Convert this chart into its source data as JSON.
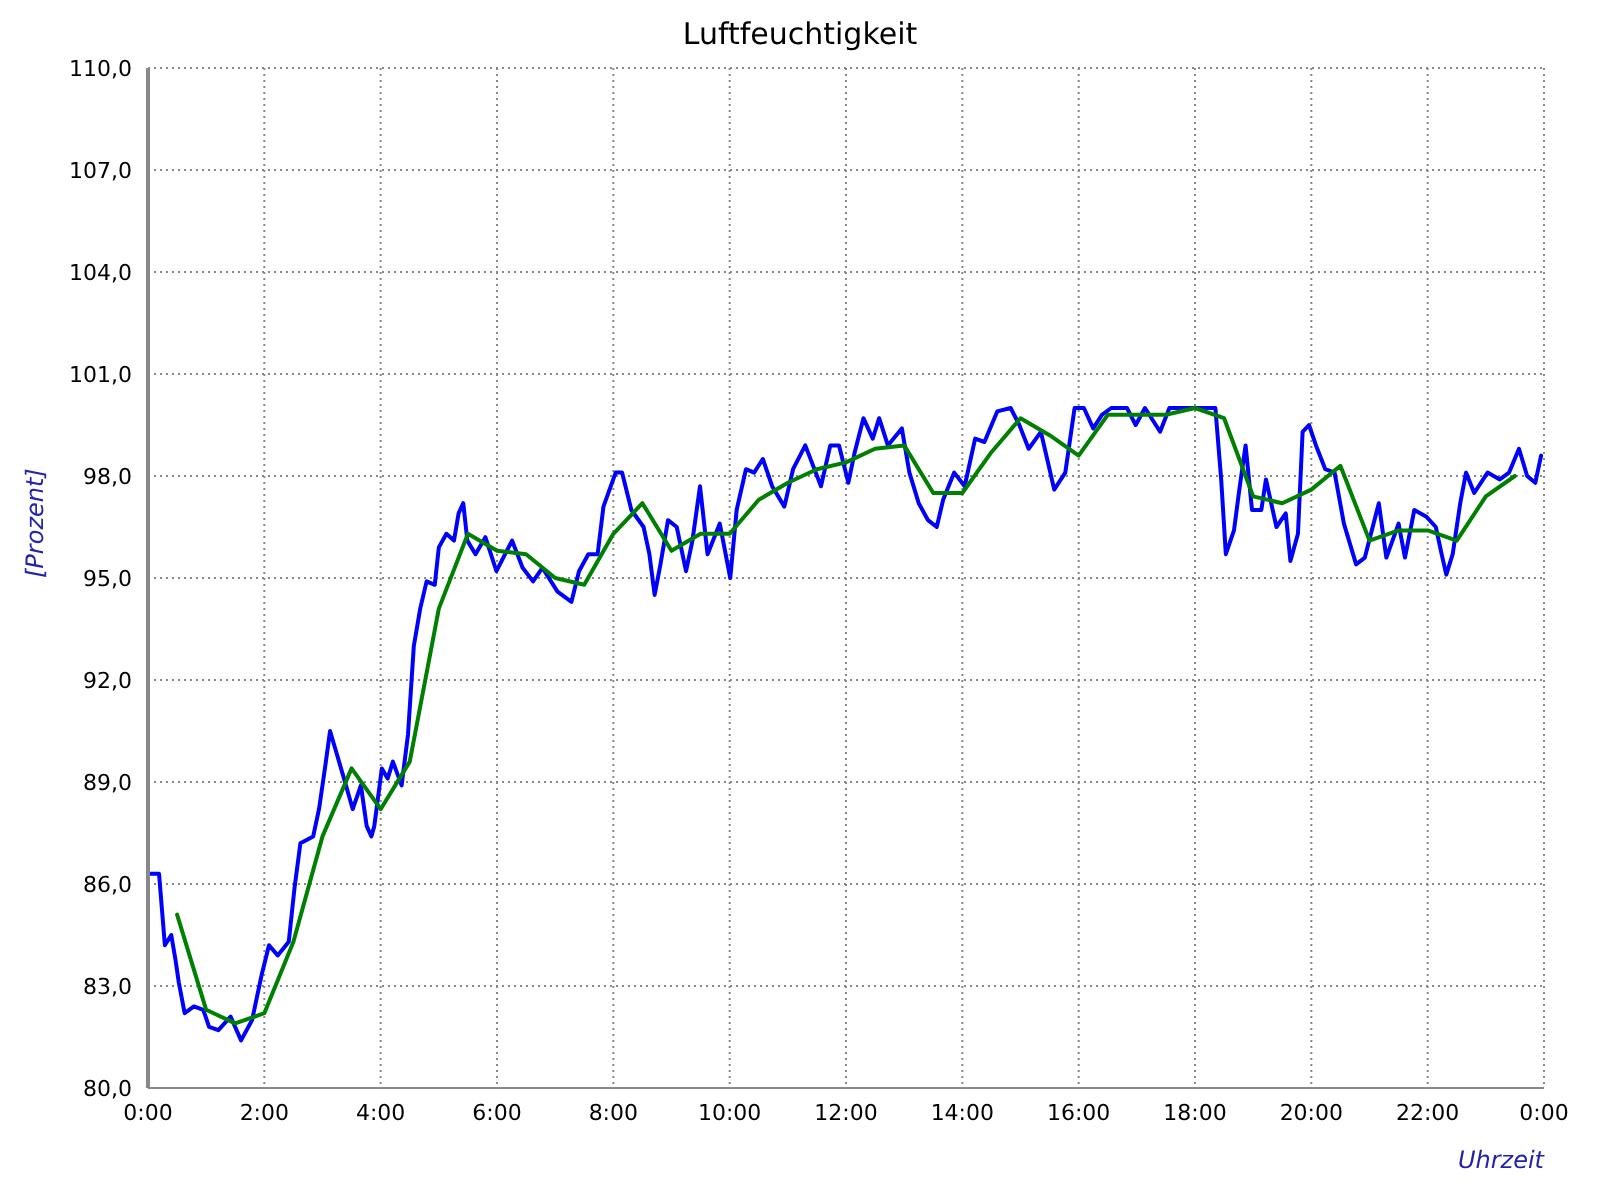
{
  "chart_data": {
    "type": "line",
    "title": "Luftfeuchtigkeit",
    "xlabel": "Uhrzeit",
    "ylabel": "[Prozent]",
    "xlim": [
      0,
      24
    ],
    "xticks": [
      {
        "value": 0,
        "label": "0:00"
      },
      {
        "value": 2,
        "label": "2:00"
      },
      {
        "value": 4,
        "label": "4:00"
      },
      {
        "value": 6,
        "label": "6:00"
      },
      {
        "value": 8,
        "label": "8:00"
      },
      {
        "value": 10,
        "label": "10:00"
      },
      {
        "value": 12,
        "label": "12:00"
      },
      {
        "value": 14,
        "label": "14:00"
      },
      {
        "value": 16,
        "label": "16:00"
      },
      {
        "value": 18,
        "label": "18:00"
      },
      {
        "value": 20,
        "label": "20:00"
      },
      {
        "value": 22,
        "label": "22:00"
      },
      {
        "value": 24,
        "label": "0:00"
      }
    ],
    "ylim": [
      80,
      110
    ],
    "yticks": [
      {
        "value": 80,
        "label": "80,0"
      },
      {
        "value": 83,
        "label": "83,0"
      },
      {
        "value": 86,
        "label": "86,0"
      },
      {
        "value": 89,
        "label": "89,0"
      },
      {
        "value": 92,
        "label": "92,0"
      },
      {
        "value": 95,
        "label": "95,0"
      },
      {
        "value": 98,
        "label": "98,0"
      },
      {
        "value": 101,
        "label": "101,0"
      },
      {
        "value": 104,
        "label": "104,0"
      },
      {
        "value": 107,
        "label": "107,0"
      },
      {
        "value": 110,
        "label": "110,0"
      }
    ],
    "grid": true,
    "marker": "none",
    "line_style": "solid",
    "series": [
      {
        "color": "#0000ff",
        "x": [
          0.0,
          0.19,
          0.29,
          0.4,
          0.47,
          0.53,
          0.63,
          0.79,
          0.95,
          1.05,
          1.21,
          1.42,
          1.6,
          1.79,
          1.95,
          2.08,
          2.23,
          2.42,
          2.52,
          2.62,
          2.84,
          2.94,
          3.05,
          3.13,
          3.25,
          3.37,
          3.52,
          3.66,
          3.76,
          3.84,
          3.89,
          4.02,
          4.12,
          4.21,
          4.36,
          4.47,
          4.57,
          4.68,
          4.79,
          4.93,
          5.0,
          5.13,
          5.26,
          5.34,
          5.42,
          5.49,
          5.63,
          5.8,
          5.99,
          6.26,
          6.44,
          6.62,
          6.78,
          7.04,
          7.28,
          7.41,
          7.57,
          7.73,
          7.83,
          8.04,
          8.15,
          8.31,
          8.52,
          8.62,
          8.71,
          8.81,
          8.94,
          9.09,
          9.25,
          9.36,
          9.49,
          9.62,
          9.83,
          10.01,
          10.12,
          10.28,
          10.42,
          10.57,
          10.73,
          10.94,
          11.09,
          11.3,
          11.57,
          11.73,
          11.88,
          12.04,
          12.15,
          12.3,
          12.46,
          12.57,
          12.72,
          12.96,
          13.09,
          13.25,
          13.41,
          13.56,
          13.67,
          13.86,
          14.04,
          14.22,
          14.38,
          14.6,
          14.83,
          14.98,
          15.14,
          15.35,
          15.58,
          15.77,
          15.93,
          16.09,
          16.25,
          16.4,
          16.56,
          16.83,
          16.98,
          17.14,
          17.4,
          17.56,
          18.35,
          18.45,
          18.53,
          18.67,
          18.77,
          18.87,
          18.98,
          19.14,
          19.22,
          19.4,
          19.56,
          19.64,
          19.77,
          19.85,
          19.96,
          20.08,
          20.24,
          20.4,
          20.56,
          20.77,
          20.92,
          21.16,
          21.29,
          21.5,
          21.61,
          21.77,
          21.98,
          22.14,
          22.24,
          22.32,
          22.43,
          22.56,
          22.66,
          22.8,
          23.03,
          23.24,
          23.4,
          23.57,
          23.71,
          23.85,
          23.95
        ],
        "values": [
          86.3,
          86.3,
          84.2,
          84.5,
          83.8,
          83.1,
          82.2,
          82.4,
          82.3,
          81.8,
          81.7,
          82.1,
          81.4,
          82.0,
          83.3,
          84.2,
          83.9,
          84.3,
          85.9,
          87.2,
          87.4,
          88.2,
          89.5,
          90.5,
          89.8,
          89.1,
          88.2,
          88.9,
          87.7,
          87.4,
          87.7,
          89.4,
          89.1,
          89.6,
          88.9,
          90.4,
          93.0,
          94.1,
          94.9,
          94.8,
          95.9,
          96.3,
          96.1,
          96.9,
          97.2,
          96.1,
          95.7,
          96.2,
          95.2,
          96.1,
          95.3,
          94.9,
          95.3,
          94.6,
          94.3,
          95.2,
          95.7,
          95.7,
          97.1,
          98.1,
          98.1,
          97.0,
          96.5,
          95.7,
          94.5,
          95.4,
          96.7,
          96.5,
          95.2,
          96.1,
          97.7,
          95.7,
          96.6,
          95.0,
          97.0,
          98.2,
          98.1,
          98.5,
          97.7,
          97.1,
          98.2,
          98.9,
          97.7,
          98.9,
          98.9,
          97.8,
          98.7,
          99.7,
          99.1,
          99.7,
          98.9,
          99.4,
          98.1,
          97.2,
          96.7,
          96.5,
          97.3,
          98.1,
          97.7,
          99.1,
          99.0,
          99.9,
          100.0,
          99.5,
          98.8,
          99.3,
          97.6,
          98.1,
          100.0,
          100.0,
          99.4,
          99.8,
          100.0,
          100.0,
          99.5,
          100.0,
          99.3,
          100.0,
          100.0,
          97.9,
          95.7,
          96.4,
          97.7,
          98.9,
          97.0,
          97.0,
          97.9,
          96.5,
          96.9,
          95.5,
          96.3,
          99.3,
          99.5,
          98.9,
          98.2,
          98.1,
          96.6,
          95.4,
          95.6,
          97.2,
          95.6,
          96.6,
          95.6,
          97.0,
          96.8,
          96.5,
          95.7,
          95.1,
          95.7,
          97.2,
          98.1,
          97.5,
          98.1,
          97.9,
          98.1,
          98.8,
          98.0,
          97.8,
          98.6
        ]
      },
      {
        "color": "#008000",
        "x": [
          0.5,
          1.0,
          1.5,
          2.0,
          2.5,
          3.0,
          3.5,
          4.0,
          4.5,
          5.0,
          5.5,
          6.0,
          6.5,
          7.0,
          7.5,
          8.0,
          8.5,
          9.0,
          9.5,
          10.0,
          10.5,
          11.0,
          11.5,
          12.0,
          12.5,
          13.0,
          13.5,
          14.0,
          14.5,
          15.0,
          15.5,
          16.0,
          16.5,
          17.5,
          18.0,
          18.5,
          19.0,
          19.5,
          20.0,
          20.5,
          21.0,
          21.5,
          22.0,
          22.5,
          23.0,
          23.5
        ],
        "values": [
          85.1,
          82.3,
          81.9,
          82.2,
          84.3,
          87.4,
          89.4,
          88.2,
          89.6,
          94.1,
          96.3,
          95.8,
          95.7,
          95.0,
          94.8,
          96.3,
          97.2,
          95.8,
          96.3,
          96.3,
          97.3,
          97.8,
          98.2,
          98.4,
          98.8,
          98.9,
          97.5,
          97.5,
          98.7,
          99.7,
          99.2,
          98.6,
          99.8,
          99.8,
          100.0,
          99.7,
          97.4,
          97.2,
          97.6,
          98.3,
          96.1,
          96.4,
          96.4,
          96.1,
          97.4,
          98.0
        ]
      }
    ]
  }
}
